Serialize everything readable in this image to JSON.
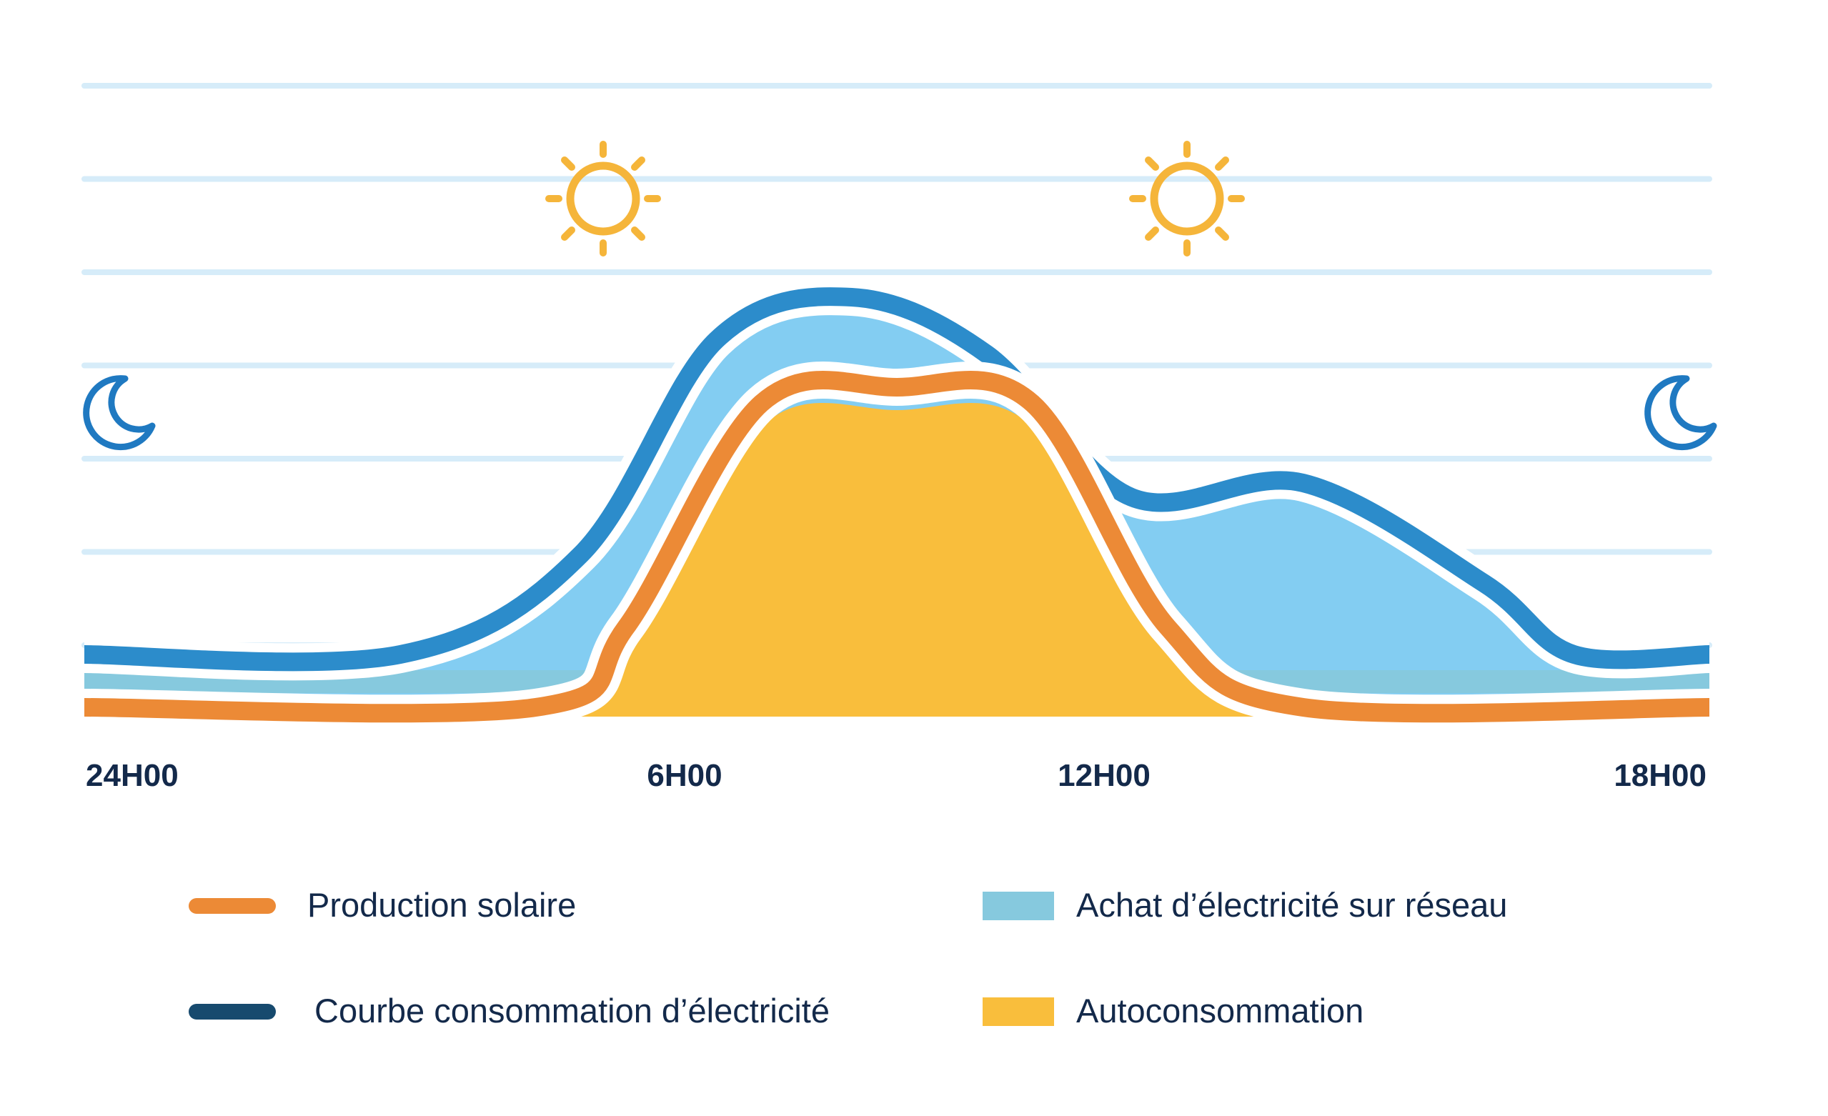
{
  "chart_data": {
    "type": "area",
    "x_ticks": [
      "24H00",
      "6H00",
      "12H00",
      "18H00"
    ],
    "y_gridlines": 7,
    "series": [
      {
        "name": "Production solaire",
        "kind": "line",
        "color": "#ec8a36",
        "points": [
          [
            0,
            0
          ],
          [
            5,
            0
          ],
          [
            6,
            0.25
          ],
          [
            7.5,
            0.95
          ],
          [
            9,
            1.0
          ],
          [
            10.5,
            0.95
          ],
          [
            12,
            0.25
          ],
          [
            13.5,
            0
          ],
          [
            18,
            0
          ]
        ]
      },
      {
        "name": "Courbe consommation d’électricité",
        "kind": "line",
        "color": "#2c8ccb",
        "points": [
          [
            0,
            0
          ],
          [
            3.5,
            0
          ],
          [
            5.5,
            0.35
          ],
          [
            7,
            1.1
          ],
          [
            8.5,
            1.25
          ],
          [
            10,
            1.05
          ],
          [
            11.6,
            0.55
          ],
          [
            13.5,
            0.6
          ],
          [
            15.5,
            0.25
          ],
          [
            16.5,
            0
          ],
          [
            18,
            0
          ]
        ]
      },
      {
        "name": "Achat d’électricité sur réseau",
        "kind": "area",
        "color": "#83cdf2"
      },
      {
        "name": "Autoconsommation",
        "kind": "area",
        "color": "#f9be3c"
      }
    ],
    "legend": [
      {
        "label": "Production solaire",
        "marker": "line",
        "color": "#ec8a36"
      },
      {
        "label": "Courbe consommation d’électricité",
        "marker": "line",
        "color": "#174a6e"
      },
      {
        "label": "Achat d’électricité sur réseau",
        "marker": "square",
        "color": "#86c9de"
      },
      {
        "label": "Autoconsommation",
        "marker": "square",
        "color": "#f9be3c"
      }
    ],
    "legend_position": "bottom",
    "icons": [
      "moon-icon",
      "sun-icon",
      "sun-icon",
      "moon-icon"
    ],
    "grid": true,
    "gridline_color": "#d6ecf9"
  }
}
